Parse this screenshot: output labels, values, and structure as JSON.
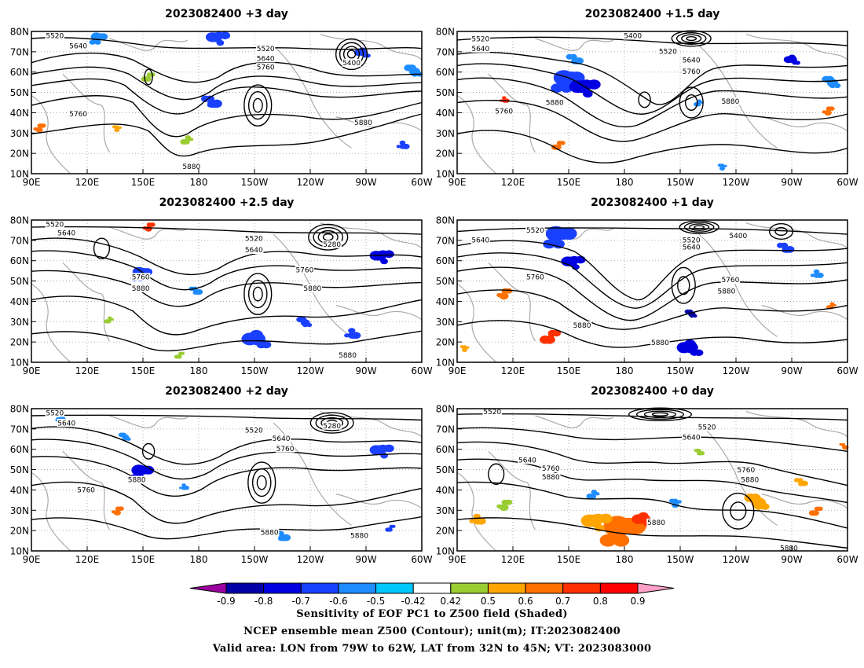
{
  "panels": [
    {
      "title": "2023082400 +3 day"
    },
    {
      "title": "2023082400 +1.5 day"
    },
    {
      "title": "2023082400 +2.5 day"
    },
    {
      "title": "2023082400 +1 day"
    },
    {
      "title": "2023082400 +2 day"
    },
    {
      "title": "2023082400 +0 day"
    }
  ],
  "map_axes": {
    "x_ticks": [
      "90E",
      "120E",
      "150E",
      "180",
      "150W",
      "120W",
      "90W",
      "60W"
    ],
    "y_ticks": [
      "80N",
      "70N",
      "60N",
      "50N",
      "40N",
      "30N",
      "20N",
      "10N"
    ],
    "lon_range_deg_east": [
      90,
      300
    ],
    "lat_range_deg": [
      10,
      80
    ],
    "grid": "dotted"
  },
  "contour_levels_m": [
    "5280",
    "5400",
    "5520",
    "5640",
    "5760",
    "5880"
  ],
  "panel_contour_labels": [
    [
      "5520",
      "5640",
      "5520",
      "5640",
      "5760",
      "5400",
      "5760",
      "5880",
      "5880"
    ],
    [
      "5520",
      "5640",
      "5400",
      "5520",
      "5640",
      "5760",
      "5880",
      "5760",
      "5880"
    ],
    [
      "5520",
      "5640",
      "5520",
      "5640",
      "5280",
      "5760",
      "5880",
      "5760",
      "5880",
      "5880"
    ],
    [
      "5640",
      "5520",
      "5520",
      "5400",
      "5640",
      "5760",
      "5760",
      "5880",
      "5880",
      "5880"
    ],
    [
      "5520",
      "5640",
      "5520",
      "5640",
      "5280",
      "5760",
      "5880",
      "5760",
      "5880",
      "5880"
    ],
    [
      "5520",
      "5520",
      "5640",
      "5640",
      "5760",
      "5880",
      "5760",
      "5880",
      "5880",
      "5880"
    ]
  ],
  "colorbar": {
    "tick_labels": [
      "-0.9",
      "-0.8",
      "-0.7",
      "-0.6",
      "-0.5",
      "-0.42",
      "0.42",
      "0.5",
      "0.6",
      "0.7",
      "0.8",
      "0.9"
    ],
    "colors": [
      "#9b00a0",
      "#0000a6",
      "#0000e0",
      "#1a40ff",
      "#1e8cff",
      "#00c8ff",
      "#ffffff",
      "#9acd32",
      "#ffa500",
      "#ff7000",
      "#ff3000",
      "#ff0000",
      "#ffa0c8"
    ]
  },
  "caption": {
    "line1": "Sensitivity of EOF PC1 to Z500 field (Shaded)",
    "line2": "NCEP ensemble mean Z500 (Contour); unit(m); IT:2023082400",
    "line3": "Valid area: LON from 79W to 62W, LAT from 32N to 45N; VT: 2023083000"
  }
}
